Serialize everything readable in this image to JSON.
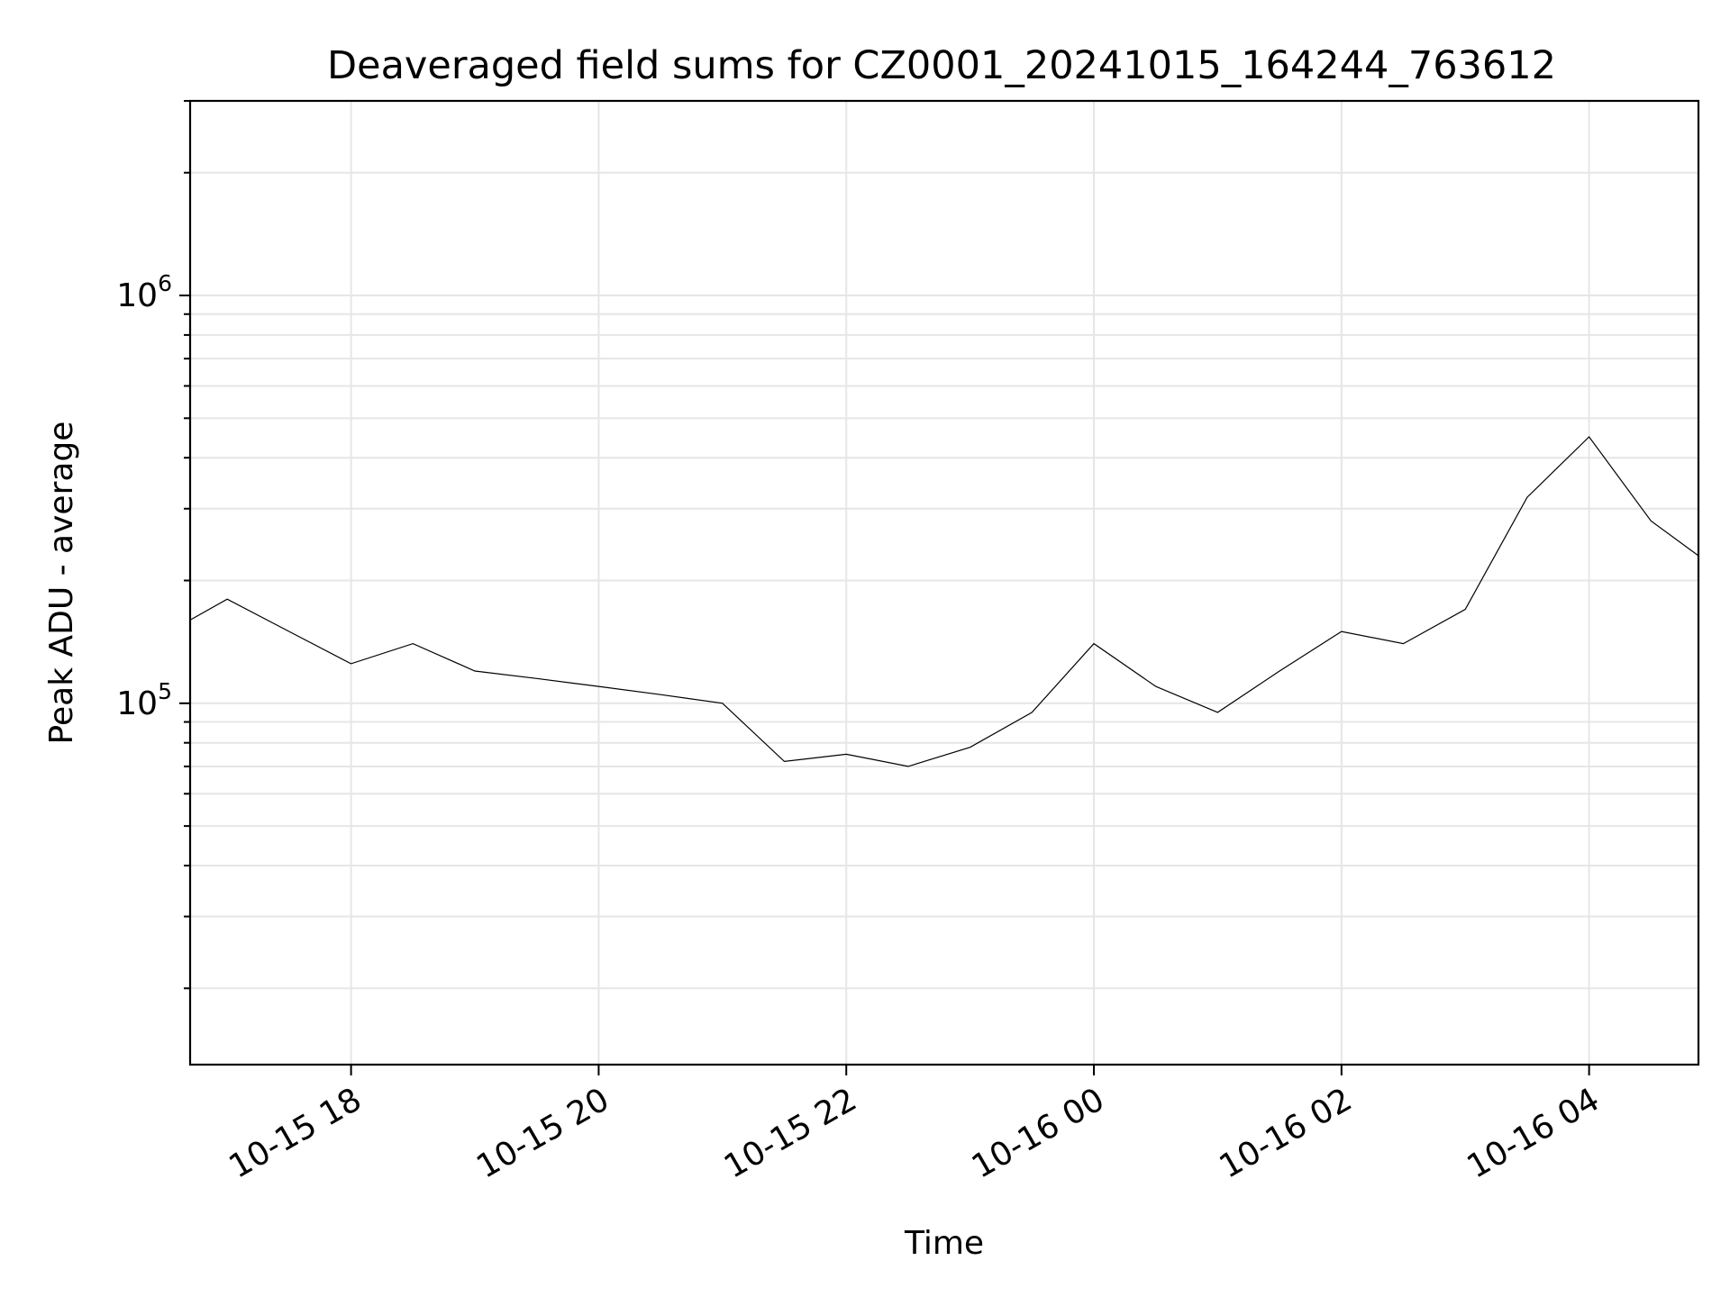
{
  "chart_data": {
    "type": "line",
    "title": "Deaveraged field sums for CZ0001_20241015_164244_763612",
    "xlabel": "Time",
    "ylabel": "Peak ADU - average",
    "yscale": "log",
    "grid": true,
    "xlim": [
      "2024-10-15T16:42",
      "2024-10-16T04:53"
    ],
    "ylim": [
      13000,
      3000000
    ],
    "x_ticks": [
      {
        "value": "2024-10-15T18:00",
        "label": "10-15 18"
      },
      {
        "value": "2024-10-15T20:00",
        "label": "10-15 20"
      },
      {
        "value": "2024-10-15T22:00",
        "label": "10-15 22"
      },
      {
        "value": "2024-10-16T00:00",
        "label": "10-16 00"
      },
      {
        "value": "2024-10-16T02:00",
        "label": "10-16 02"
      },
      {
        "value": "2024-10-16T04:00",
        "label": "10-16 04"
      }
    ],
    "y_ticks": [
      {
        "value": 100000,
        "base": "10",
        "exp": "5"
      },
      {
        "value": 1000000,
        "base": "10",
        "exp": "6"
      }
    ],
    "series": [
      {
        "color": "#000000",
        "x": [
          "2024-10-15T16:42",
          "2024-10-15T17:00",
          "2024-10-15T17:30",
          "2024-10-15T18:00",
          "2024-10-15T18:30",
          "2024-10-15T19:00",
          "2024-10-15T19:30",
          "2024-10-15T20:00",
          "2024-10-15T20:30",
          "2024-10-15T21:00",
          "2024-10-15T21:30",
          "2024-10-15T22:00",
          "2024-10-15T22:30",
          "2024-10-15T23:00",
          "2024-10-15T23:30",
          "2024-10-16T00:00",
          "2024-10-16T00:30",
          "2024-10-16T01:00",
          "2024-10-16T01:30",
          "2024-10-16T02:00",
          "2024-10-16T02:30",
          "2024-10-16T03:00",
          "2024-10-16T03:30",
          "2024-10-16T04:00",
          "2024-10-16T04:30",
          "2024-10-16T04:53"
        ],
        "y": [
          160000,
          180000,
          150000,
          125000,
          140000,
          120000,
          115000,
          110000,
          105000,
          100000,
          72000,
          75000,
          70000,
          78000,
          95000,
          140000,
          110000,
          95000,
          120000,
          150000,
          140000,
          170000,
          320000,
          450000,
          280000,
          230000
        ]
      }
    ]
  }
}
